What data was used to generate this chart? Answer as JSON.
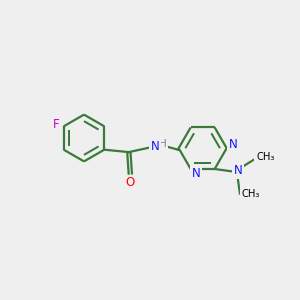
{
  "background_color": "#efefef",
  "bond_color": "#3a7a3a",
  "N_color": "#1414ff",
  "O_color": "#ff0000",
  "F_color": "#cc00cc",
  "H_color": "#6688aa",
  "line_width": 1.6,
  "dbo": 0.055,
  "figsize": [
    3.0,
    3.0
  ],
  "dpi": 100,
  "xlim": [
    0,
    10
  ],
  "ylim": [
    0,
    10
  ]
}
